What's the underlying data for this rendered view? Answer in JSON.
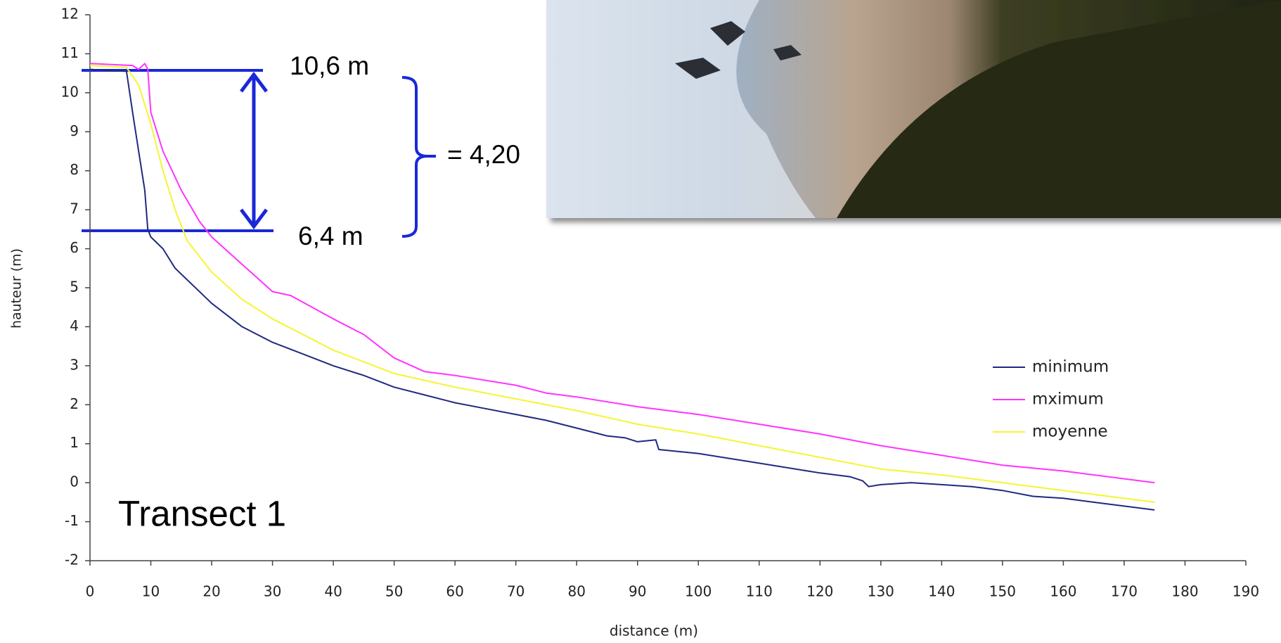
{
  "chart_data": {
    "type": "line",
    "xlabel": "distance (m)",
    "ylabel": "hauteur (m)",
    "xlim": [
      0,
      190
    ],
    "ylim": [
      -2,
      12
    ],
    "xticks": [
      0,
      10,
      20,
      30,
      40,
      50,
      60,
      70,
      80,
      90,
      100,
      110,
      120,
      130,
      140,
      150,
      160,
      170,
      180,
      190
    ],
    "yticks": [
      -2,
      -1,
      0,
      1,
      2,
      3,
      4,
      5,
      6,
      7,
      8,
      9,
      10,
      11,
      12
    ],
    "grid": false,
    "legend": "right",
    "annotations": [
      "10,6 m",
      "6,4 m",
      "= 4,20",
      "Transect 1"
    ],
    "series": [
      {
        "name": "minimum",
        "color": "#1f2a80",
        "x": [
          0,
          6,
          7,
          8,
          9,
          9.5,
          10,
          12,
          14,
          20,
          25,
          30,
          35,
          40,
          45,
          50,
          55,
          60,
          65,
          70,
          75,
          80,
          85,
          88,
          90,
          93,
          93.5,
          100,
          110,
          120,
          125,
          127,
          128,
          130,
          135,
          140,
          145,
          150,
          155,
          160,
          165,
          170,
          175
        ],
        "values": [
          10.6,
          10.55,
          9.5,
          8.5,
          7.5,
          6.5,
          6.3,
          6.0,
          5.5,
          4.6,
          4.0,
          3.6,
          3.3,
          3.0,
          2.75,
          2.45,
          2.25,
          2.05,
          1.9,
          1.75,
          1.6,
          1.4,
          1.2,
          1.15,
          1.05,
          1.1,
          0.85,
          0.75,
          0.5,
          0.25,
          0.15,
          0.05,
          -0.1,
          -0.05,
          0.0,
          -0.05,
          -0.1,
          -0.2,
          -0.35,
          -0.4,
          -0.5,
          -0.6,
          -0.7
        ]
      },
      {
        "name": "mximum",
        "color": "#ff33ff",
        "x": [
          0,
          7,
          8,
          9,
          9.5,
          10,
          12,
          15,
          18,
          20,
          25,
          30,
          33,
          40,
          45,
          50,
          55,
          60,
          70,
          75,
          80,
          90,
          100,
          110,
          120,
          130,
          140,
          150,
          160,
          175
        ],
        "values": [
          10.75,
          10.7,
          10.6,
          10.75,
          10.6,
          9.5,
          8.5,
          7.5,
          6.7,
          6.3,
          5.6,
          4.9,
          4.8,
          4.2,
          3.8,
          3.2,
          2.85,
          2.75,
          2.5,
          2.3,
          2.2,
          1.95,
          1.75,
          1.5,
          1.25,
          0.95,
          0.7,
          0.45,
          0.3,
          0.0
        ]
      },
      {
        "name": "moyenne",
        "color": "#f5f532",
        "x": [
          0,
          6,
          8,
          10,
          12,
          14,
          16,
          20,
          25,
          30,
          40,
          50,
          60,
          70,
          80,
          90,
          100,
          110,
          120,
          130,
          140,
          150,
          160,
          175
        ],
        "values": [
          10.7,
          10.65,
          10.2,
          9.2,
          8.0,
          7.0,
          6.2,
          5.4,
          4.7,
          4.2,
          3.4,
          2.8,
          2.45,
          2.15,
          1.85,
          1.5,
          1.25,
          0.95,
          0.65,
          0.35,
          0.2,
          0.0,
          -0.2,
          -0.5
        ]
      }
    ]
  }
}
